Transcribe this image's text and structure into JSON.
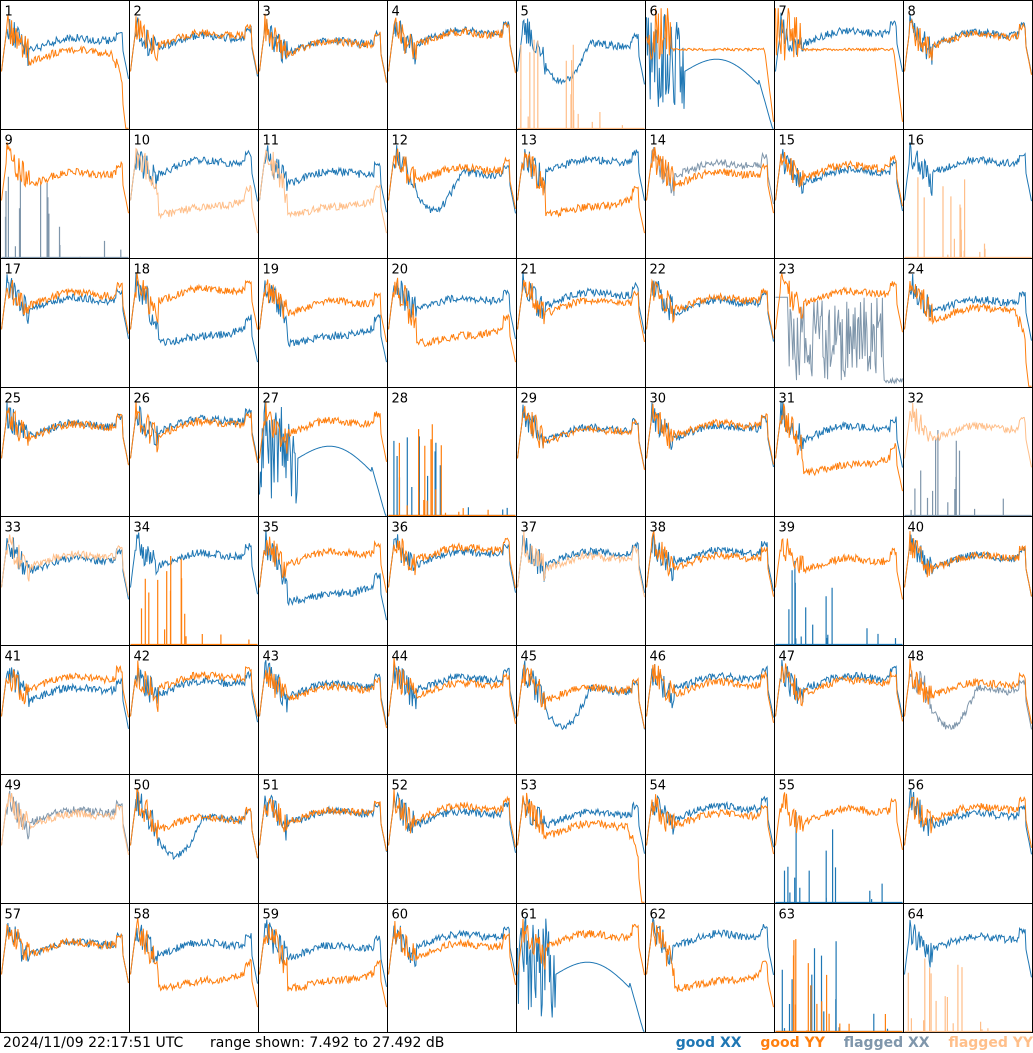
{
  "footer": {
    "timestamp": "2024/11/09 22:17:51 UTC",
    "range": "range shown: 7.492 to 27.492 dB"
  },
  "legend": {
    "good_label": "good",
    "flagged_label": "flagged",
    "xx_label": "XX",
    "yy_label": "YY"
  },
  "colors": {
    "good_xx": "#1f77b4",
    "good_yy": "#ff7f0e",
    "flagged_xx": "#7f96ab",
    "flagged_yy": "#ffbf8a"
  },
  "chart_data": {
    "type": "line",
    "grid": "8x8 small multiples",
    "ylim_db": [
      7.492,
      27.492
    ],
    "panels": [
      {
        "id": 1,
        "xx": [
          "good",
          "A"
        ],
        "yy": [
          "good",
          "V"
        ]
      },
      {
        "id": 2,
        "xx": [
          "good",
          "A"
        ],
        "yy": [
          "good",
          "A"
        ]
      },
      {
        "id": 3,
        "xx": [
          "good",
          "A"
        ],
        "yy": [
          "good",
          "A"
        ]
      },
      {
        "id": 4,
        "xx": [
          "good",
          "A"
        ],
        "yy": [
          "good",
          "A"
        ]
      },
      {
        "id": 5,
        "xx": [
          "good",
          "D"
        ],
        "yy": [
          "flagged",
          "F"
        ]
      },
      {
        "id": 6,
        "xx": [
          "good",
          "N"
        ],
        "yy": [
          "good",
          "B"
        ]
      },
      {
        "id": 7,
        "xx": [
          "good",
          "A"
        ],
        "yy": [
          "good",
          "B"
        ]
      },
      {
        "id": 8,
        "xx": [
          "good",
          "A"
        ],
        "yy": [
          "good",
          "A"
        ]
      },
      {
        "id": 9,
        "xx": [
          "flagged",
          "F"
        ],
        "yy": [
          "good",
          "A"
        ]
      },
      {
        "id": 10,
        "xx": [
          "good",
          "A"
        ],
        "yy": [
          "flagged",
          "L"
        ]
      },
      {
        "id": 11,
        "xx": [
          "good",
          "A"
        ],
        "yy": [
          "flagged",
          "L"
        ]
      },
      {
        "id": 12,
        "xx": [
          "good",
          "D"
        ],
        "yy": [
          "good",
          "A"
        ]
      },
      {
        "id": 13,
        "xx": [
          "good",
          "A"
        ],
        "yy": [
          "good",
          "L"
        ]
      },
      {
        "id": 14,
        "xx": [
          "flagged",
          "A"
        ],
        "yy": [
          "good",
          "A"
        ]
      },
      {
        "id": 15,
        "xx": [
          "good",
          "A"
        ],
        "yy": [
          "good",
          "A"
        ]
      },
      {
        "id": 16,
        "xx": [
          "good",
          "A"
        ],
        "yy": [
          "flagged",
          "F"
        ]
      },
      {
        "id": 17,
        "xx": [
          "good",
          "A"
        ],
        "yy": [
          "good",
          "A"
        ]
      },
      {
        "id": 18,
        "xx": [
          "good",
          "L"
        ],
        "yy": [
          "good",
          "A"
        ]
      },
      {
        "id": 19,
        "xx": [
          "good",
          "L"
        ],
        "yy": [
          "good",
          "A"
        ]
      },
      {
        "id": 20,
        "xx": [
          "good",
          "A"
        ],
        "yy": [
          "good",
          "L"
        ]
      },
      {
        "id": 21,
        "xx": [
          "good",
          "A"
        ],
        "yy": [
          "good",
          "A"
        ]
      },
      {
        "id": 22,
        "xx": [
          "good",
          "A"
        ],
        "yy": [
          "good",
          "A"
        ]
      },
      {
        "id": 23,
        "xx": [
          "flagged",
          "C"
        ],
        "yy": [
          "good",
          "A"
        ]
      },
      {
        "id": 24,
        "xx": [
          "good",
          "A"
        ],
        "yy": [
          "good",
          "V"
        ]
      },
      {
        "id": 25,
        "xx": [
          "good",
          "A"
        ],
        "yy": [
          "good",
          "A"
        ]
      },
      {
        "id": 26,
        "xx": [
          "good",
          "A"
        ],
        "yy": [
          "good",
          "A"
        ]
      },
      {
        "id": 27,
        "xx": [
          "good",
          "N"
        ],
        "yy": [
          "good",
          "A"
        ]
      },
      {
        "id": 28,
        "xx": [
          "good",
          "F"
        ],
        "yy": [
          "good",
          "F"
        ]
      },
      {
        "id": 29,
        "xx": [
          "good",
          "A"
        ],
        "yy": [
          "good",
          "A"
        ]
      },
      {
        "id": 30,
        "xx": [
          "good",
          "A"
        ],
        "yy": [
          "good",
          "A"
        ]
      },
      {
        "id": 31,
        "xx": [
          "good",
          "A"
        ],
        "yy": [
          "good",
          "L"
        ]
      },
      {
        "id": 32,
        "xx": [
          "flagged",
          "F"
        ],
        "yy": [
          "flagged",
          "A"
        ]
      },
      {
        "id": 33,
        "xx": [
          "good",
          "A"
        ],
        "yy": [
          "flagged",
          "A"
        ]
      },
      {
        "id": 34,
        "xx": [
          "good",
          "A"
        ],
        "yy": [
          "good",
          "F"
        ]
      },
      {
        "id": 35,
        "xx": [
          "good",
          "L"
        ],
        "yy": [
          "good",
          "A"
        ]
      },
      {
        "id": 36,
        "xx": [
          "good",
          "A"
        ],
        "yy": [
          "good",
          "A"
        ]
      },
      {
        "id": 37,
        "xx": [
          "good",
          "A"
        ],
        "yy": [
          "flagged",
          "A"
        ]
      },
      {
        "id": 38,
        "xx": [
          "good",
          "A"
        ],
        "yy": [
          "good",
          "A"
        ]
      },
      {
        "id": 39,
        "xx": [
          "good",
          "F"
        ],
        "yy": [
          "good",
          "A"
        ]
      },
      {
        "id": 40,
        "xx": [
          "good",
          "A"
        ],
        "yy": [
          "good",
          "A"
        ]
      },
      {
        "id": 41,
        "xx": [
          "good",
          "A"
        ],
        "yy": [
          "good",
          "A"
        ]
      },
      {
        "id": 42,
        "xx": [
          "good",
          "A"
        ],
        "yy": [
          "good",
          "A"
        ]
      },
      {
        "id": 43,
        "xx": [
          "good",
          "A"
        ],
        "yy": [
          "good",
          "A"
        ]
      },
      {
        "id": 44,
        "xx": [
          "good",
          "A"
        ],
        "yy": [
          "good",
          "A"
        ]
      },
      {
        "id": 45,
        "xx": [
          "good",
          "D"
        ],
        "yy": [
          "good",
          "A"
        ]
      },
      {
        "id": 46,
        "xx": [
          "good",
          "A"
        ],
        "yy": [
          "good",
          "A"
        ]
      },
      {
        "id": 47,
        "xx": [
          "good",
          "A"
        ],
        "yy": [
          "good",
          "A"
        ]
      },
      {
        "id": 48,
        "xx": [
          "flagged",
          "D"
        ],
        "yy": [
          "good",
          "A"
        ]
      },
      {
        "id": 49,
        "xx": [
          "flagged",
          "A"
        ],
        "yy": [
          "flagged",
          "A"
        ]
      },
      {
        "id": 50,
        "xx": [
          "good",
          "D"
        ],
        "yy": [
          "good",
          "A"
        ]
      },
      {
        "id": 51,
        "xx": [
          "good",
          "A"
        ],
        "yy": [
          "good",
          "A"
        ]
      },
      {
        "id": 52,
        "xx": [
          "good",
          "A"
        ],
        "yy": [
          "good",
          "A"
        ]
      },
      {
        "id": 53,
        "xx": [
          "good",
          "A"
        ],
        "yy": [
          "good",
          "V"
        ]
      },
      {
        "id": 54,
        "xx": [
          "good",
          "A"
        ],
        "yy": [
          "good",
          "A"
        ]
      },
      {
        "id": 55,
        "xx": [
          "good",
          "F"
        ],
        "yy": [
          "good",
          "A"
        ]
      },
      {
        "id": 56,
        "xx": [
          "good",
          "A"
        ],
        "yy": [
          "good",
          "A"
        ]
      },
      {
        "id": 57,
        "xx": [
          "good",
          "A"
        ],
        "yy": [
          "good",
          "A"
        ]
      },
      {
        "id": 58,
        "xx": [
          "good",
          "A"
        ],
        "yy": [
          "good",
          "L"
        ]
      },
      {
        "id": 59,
        "xx": [
          "good",
          "A"
        ],
        "yy": [
          "good",
          "L"
        ]
      },
      {
        "id": 60,
        "xx": [
          "good",
          "A"
        ],
        "yy": [
          "good",
          "A"
        ]
      },
      {
        "id": 61,
        "xx": [
          "good",
          "N"
        ],
        "yy": [
          "good",
          "A"
        ]
      },
      {
        "id": 62,
        "xx": [
          "good",
          "A"
        ],
        "yy": [
          "good",
          "L"
        ]
      },
      {
        "id": 63,
        "xx": [
          "good",
          "F"
        ],
        "yy": [
          "good",
          "F"
        ]
      },
      {
        "id": 64,
        "xx": [
          "good",
          "A"
        ],
        "yy": [
          "flagged",
          "F"
        ]
      }
    ]
  }
}
